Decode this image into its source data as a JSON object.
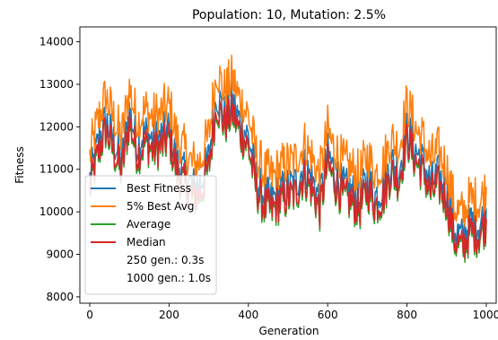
{
  "chart_data": {
    "type": "line",
    "title": "Population: 10, Mutation: 2.5%",
    "xlabel": "Generation",
    "ylabel": "Fitness",
    "xlim": [
      -25,
      1025
    ],
    "ylim": [
      7850,
      14350
    ],
    "xticks": [
      0,
      200,
      400,
      600,
      800,
      1000
    ],
    "yticks": [
      8000,
      9000,
      10000,
      11000,
      12000,
      13000,
      14000
    ],
    "grid": false,
    "legend_position": "lower-left",
    "legend_extra": [
      "250 gen.: 0.3s",
      "1000 gen.: 1.0s"
    ],
    "base_curve": {
      "x": [
        0,
        20,
        40,
        60,
        80,
        100,
        120,
        140,
        160,
        180,
        200,
        220,
        240,
        260,
        280,
        300,
        320,
        340,
        360,
        380,
        400,
        420,
        440,
        460,
        480,
        500,
        520,
        540,
        560,
        580,
        600,
        620,
        640,
        660,
        680,
        700,
        720,
        740,
        760,
        780,
        800,
        820,
        840,
        860,
        880,
        900,
        920,
        940,
        960,
        980,
        1000
      ],
      "y": [
        10600,
        11400,
        12000,
        11500,
        11000,
        12200,
        11400,
        11700,
        11500,
        11600,
        11800,
        11000,
        10700,
        10400,
        10500,
        11100,
        12600,
        12100,
        12400,
        11900,
        11600,
        10600,
        10200,
        10100,
        10300,
        10400,
        10500,
        10900,
        10600,
        10100,
        11200,
        10700,
        10400,
        10300,
        10100,
        10600,
        10200,
        10400,
        11000,
        10800,
        11800,
        11300,
        11000,
        10500,
        10700,
        10300,
        9400,
        9200,
        9600,
        9500,
        9800
      ]
    },
    "series": [
      {
        "name": "Best Fitness",
        "color": "#1f77b4",
        "offset": 180,
        "noise": 500
      },
      {
        "name": "5% Best Avg",
        "color": "#ff7f0e",
        "offset": 650,
        "noise": 550
      },
      {
        "name": "Average",
        "color": "#2ca02c",
        "offset": -120,
        "noise": 480
      },
      {
        "name": "Median",
        "color": "#d62728",
        "offset": -50,
        "noise": 470
      }
    ]
  }
}
